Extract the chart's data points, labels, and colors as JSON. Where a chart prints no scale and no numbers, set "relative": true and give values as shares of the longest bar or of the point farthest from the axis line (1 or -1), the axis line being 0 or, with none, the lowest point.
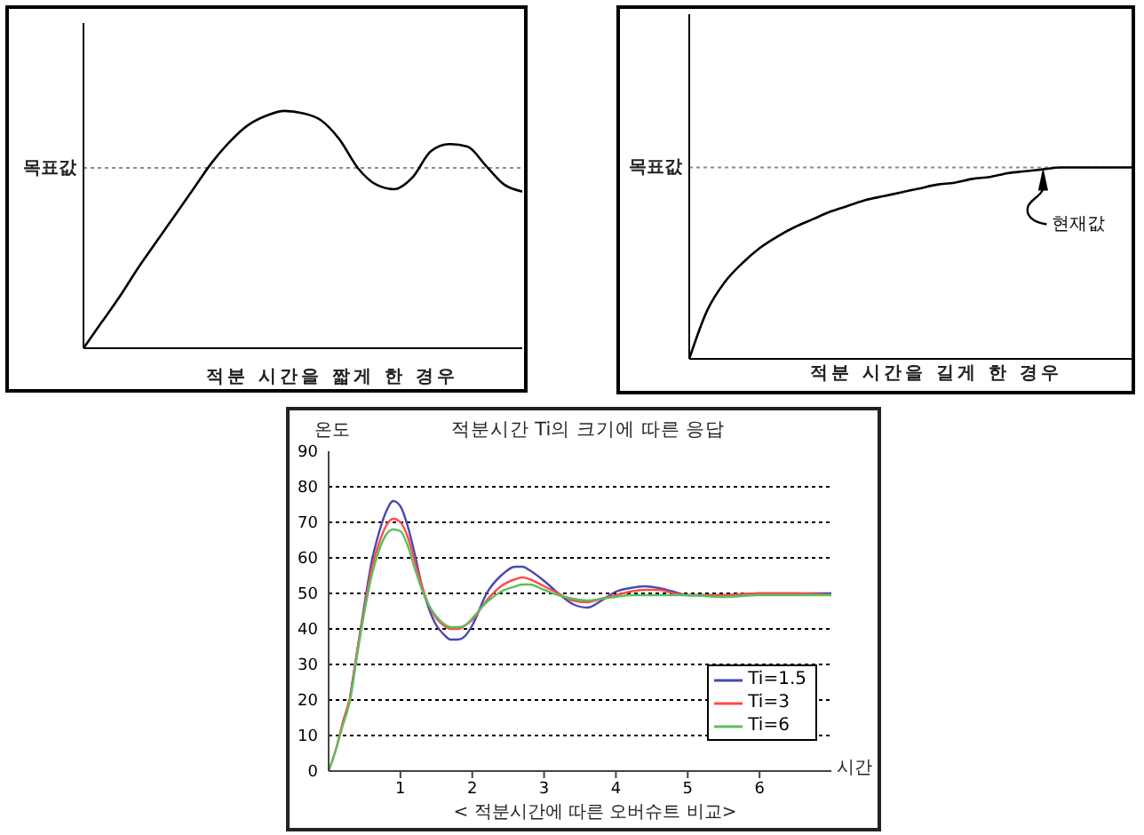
{
  "chart_data": [
    {
      "type": "line",
      "xlabel": "적분 시간을 짧게 한 경우",
      "relative": true,
      "categories": [
        null,
        null,
        null,
        null,
        null,
        null,
        null,
        null,
        null,
        null,
        null,
        null,
        null,
        null,
        null,
        null,
        null,
        null,
        null,
        null,
        null,
        null,
        null,
        null,
        null
      ],
      "values": [
        0,
        0.11,
        0.22,
        0.34,
        0.45,
        0.56,
        0.67,
        0.78,
        0.87,
        0.94,
        0.98,
        1,
        0.99,
        0.96,
        0.88,
        0.76,
        0.69,
        0.67,
        0.72,
        0.83,
        0.86,
        0.85,
        0.77,
        0.69,
        0.66
      ],
      "color": "#000000",
      "ref_lines": [
        {
          "axis": "y",
          "value": 0.76,
          "label": "목표값",
          "color": "#8c8c8c",
          "line_style": "dotted"
        }
      ]
    },
    {
      "type": "line",
      "xlabel": "적분 시간을 길게 한 경우",
      "relative": true,
      "categories": [
        null,
        null,
        null,
        null,
        null,
        null,
        null,
        null,
        null,
        null,
        null,
        null,
        null,
        null,
        null,
        null,
        null,
        null,
        null,
        null,
        null,
        null,
        null,
        null,
        null,
        null
      ],
      "values": [
        0,
        0.25,
        0.4,
        0.5,
        0.58,
        0.64,
        0.69,
        0.73,
        0.77,
        0.8,
        0.83,
        0.85,
        0.87,
        0.89,
        0.91,
        0.92,
        0.94,
        0.95,
        0.97,
        0.98,
        0.99,
        1,
        1,
        1,
        1,
        1
      ],
      "color": "#000000",
      "ref_lines": [
        {
          "axis": "y",
          "value": 1,
          "label": "목표값",
          "color": "#8c8c8c",
          "line_style": "dotted"
        }
      ],
      "annotations": [
        {
          "text": "현재값",
          "y": 1
        }
      ]
    },
    {
      "type": "line",
      "title": "적분시간 Ti의 크기에 따른 응답",
      "ylabel": "온도",
      "xlabel": "시간",
      "x": [
        0,
        0.1,
        0.2,
        0.3,
        0.4,
        0.5,
        0.6,
        0.7,
        0.8,
        0.9,
        1,
        1.1,
        1.2,
        1.3,
        1.4,
        1.5,
        1.6,
        1.7,
        1.8,
        1.9,
        2,
        2.2,
        2.4,
        2.6,
        2.7,
        2.8,
        3,
        3.2,
        3.4,
        3.6,
        3.8,
        4,
        4.2,
        4.4,
        4.6,
        4.8,
        5,
        5.5,
        6,
        6.5,
        7
      ],
      "xlim": [
        0,
        7
      ],
      "xticks": [
        1,
        2,
        3,
        4,
        5,
        6
      ],
      "ylim": [
        0,
        90
      ],
      "yticks": [
        0,
        10,
        20,
        30,
        40,
        50,
        60,
        70,
        80,
        90
      ],
      "grid": "y",
      "legend": "bottom right",
      "series": [
        {
          "name": "Ti=1.5",
          "color": "#4848b0",
          "values": [
            null,
            null,
            null,
            21,
            34,
            47,
            59,
            67,
            73,
            76,
            74.5,
            69,
            61,
            52,
            45.5,
            41,
            38.5,
            37,
            37,
            38,
            41,
            50,
            55,
            57.5,
            57.5,
            56.5,
            53.5,
            50,
            47,
            46,
            48,
            50.5,
            51.5,
            52,
            51.5,
            50.5,
            49.5,
            49.5,
            50,
            50,
            50
          ]
        },
        {
          "name": "Ti=3",
          "color": "#ff4a4a",
          "values": [
            0,
            6,
            14,
            21,
            34,
            46,
            57,
            64,
            69,
            71,
            70,
            66,
            59,
            52,
            46.5,
            43,
            41,
            40,
            40,
            41,
            42.5,
            48,
            52,
            54,
            54.5,
            54,
            52,
            50,
            48,
            47.5,
            48.5,
            49.5,
            50.5,
            51,
            51,
            50,
            49.5,
            49.5,
            50,
            50,
            49.5
          ]
        },
        {
          "name": "Ti=6",
          "color": "#5cbf5c",
          "values": [
            0,
            6,
            13,
            20,
            33,
            45,
            55,
            62,
            66.5,
            68,
            67.5,
            63.5,
            57,
            51,
            46.5,
            43.5,
            41.5,
            40.5,
            40.5,
            41,
            43,
            47.5,
            50.5,
            52,
            52.5,
            52.5,
            51,
            49.5,
            48.5,
            48,
            48.5,
            49,
            49.5,
            49.5,
            49.5,
            49.5,
            49.5,
            49,
            49.5,
            49.5,
            49.5
          ]
        }
      ],
      "annotations": [
        "< 적분시간에 따른 오버슈트 비교>"
      ]
    }
  ]
}
